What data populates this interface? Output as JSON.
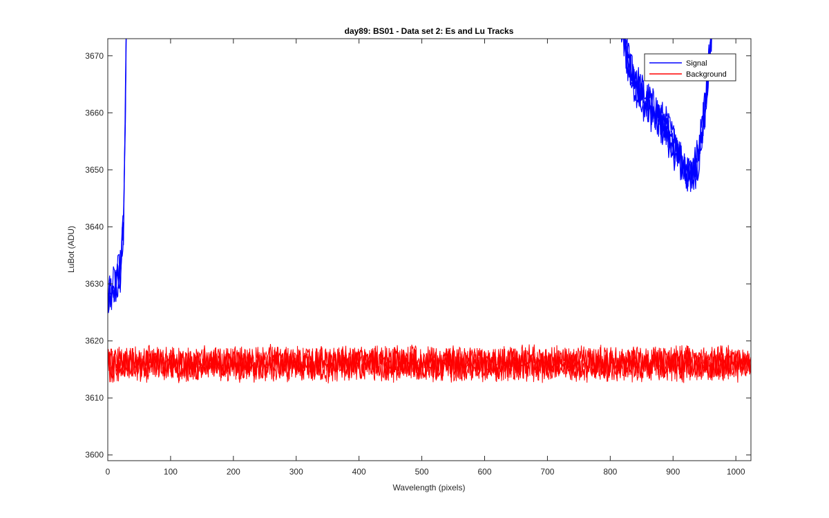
{
  "chart_data": {
    "type": "line",
    "title": "day89: BS01 - Data set 2: Es and Lu Tracks",
    "xlabel": "Wavelength (pixels)",
    "ylabel": "LuBot (ADU)",
    "xlim": [
      0,
      1024
    ],
    "ylim": [
      3599,
      3673
    ],
    "xticks": [
      0,
      100,
      200,
      300,
      400,
      500,
      600,
      700,
      800,
      900,
      1000
    ],
    "yticks": [
      3600,
      3610,
      3620,
      3630,
      3640,
      3650,
      3660,
      3670
    ],
    "grid": false,
    "legend": "top-right",
    "series": [
      {
        "name": "Signal",
        "color": "#0000ff",
        "traces": 4,
        "noise_amplitude": 3,
        "segments": [
          {
            "x": [
              0,
              10,
              20,
              25,
              28,
              30
            ],
            "y": [
              3628,
              3629,
              3632,
              3640,
              3660,
              3680
            ]
          },
          {
            "x": [
              810,
              830,
              850,
              870,
              890,
              910,
              920,
              930,
              940,
              950,
              960,
              970
            ],
            "y": [
              3680,
              3668,
              3663,
              3660,
              3657,
              3652,
              3650,
              3649,
              3652,
              3660,
              3672,
              3690
            ]
          }
        ]
      },
      {
        "name": "Background",
        "color": "#ff0000",
        "traces": 4,
        "x": [
          0,
          1024
        ],
        "mean": 3616,
        "noise_amplitude": 2.5
      }
    ]
  }
}
